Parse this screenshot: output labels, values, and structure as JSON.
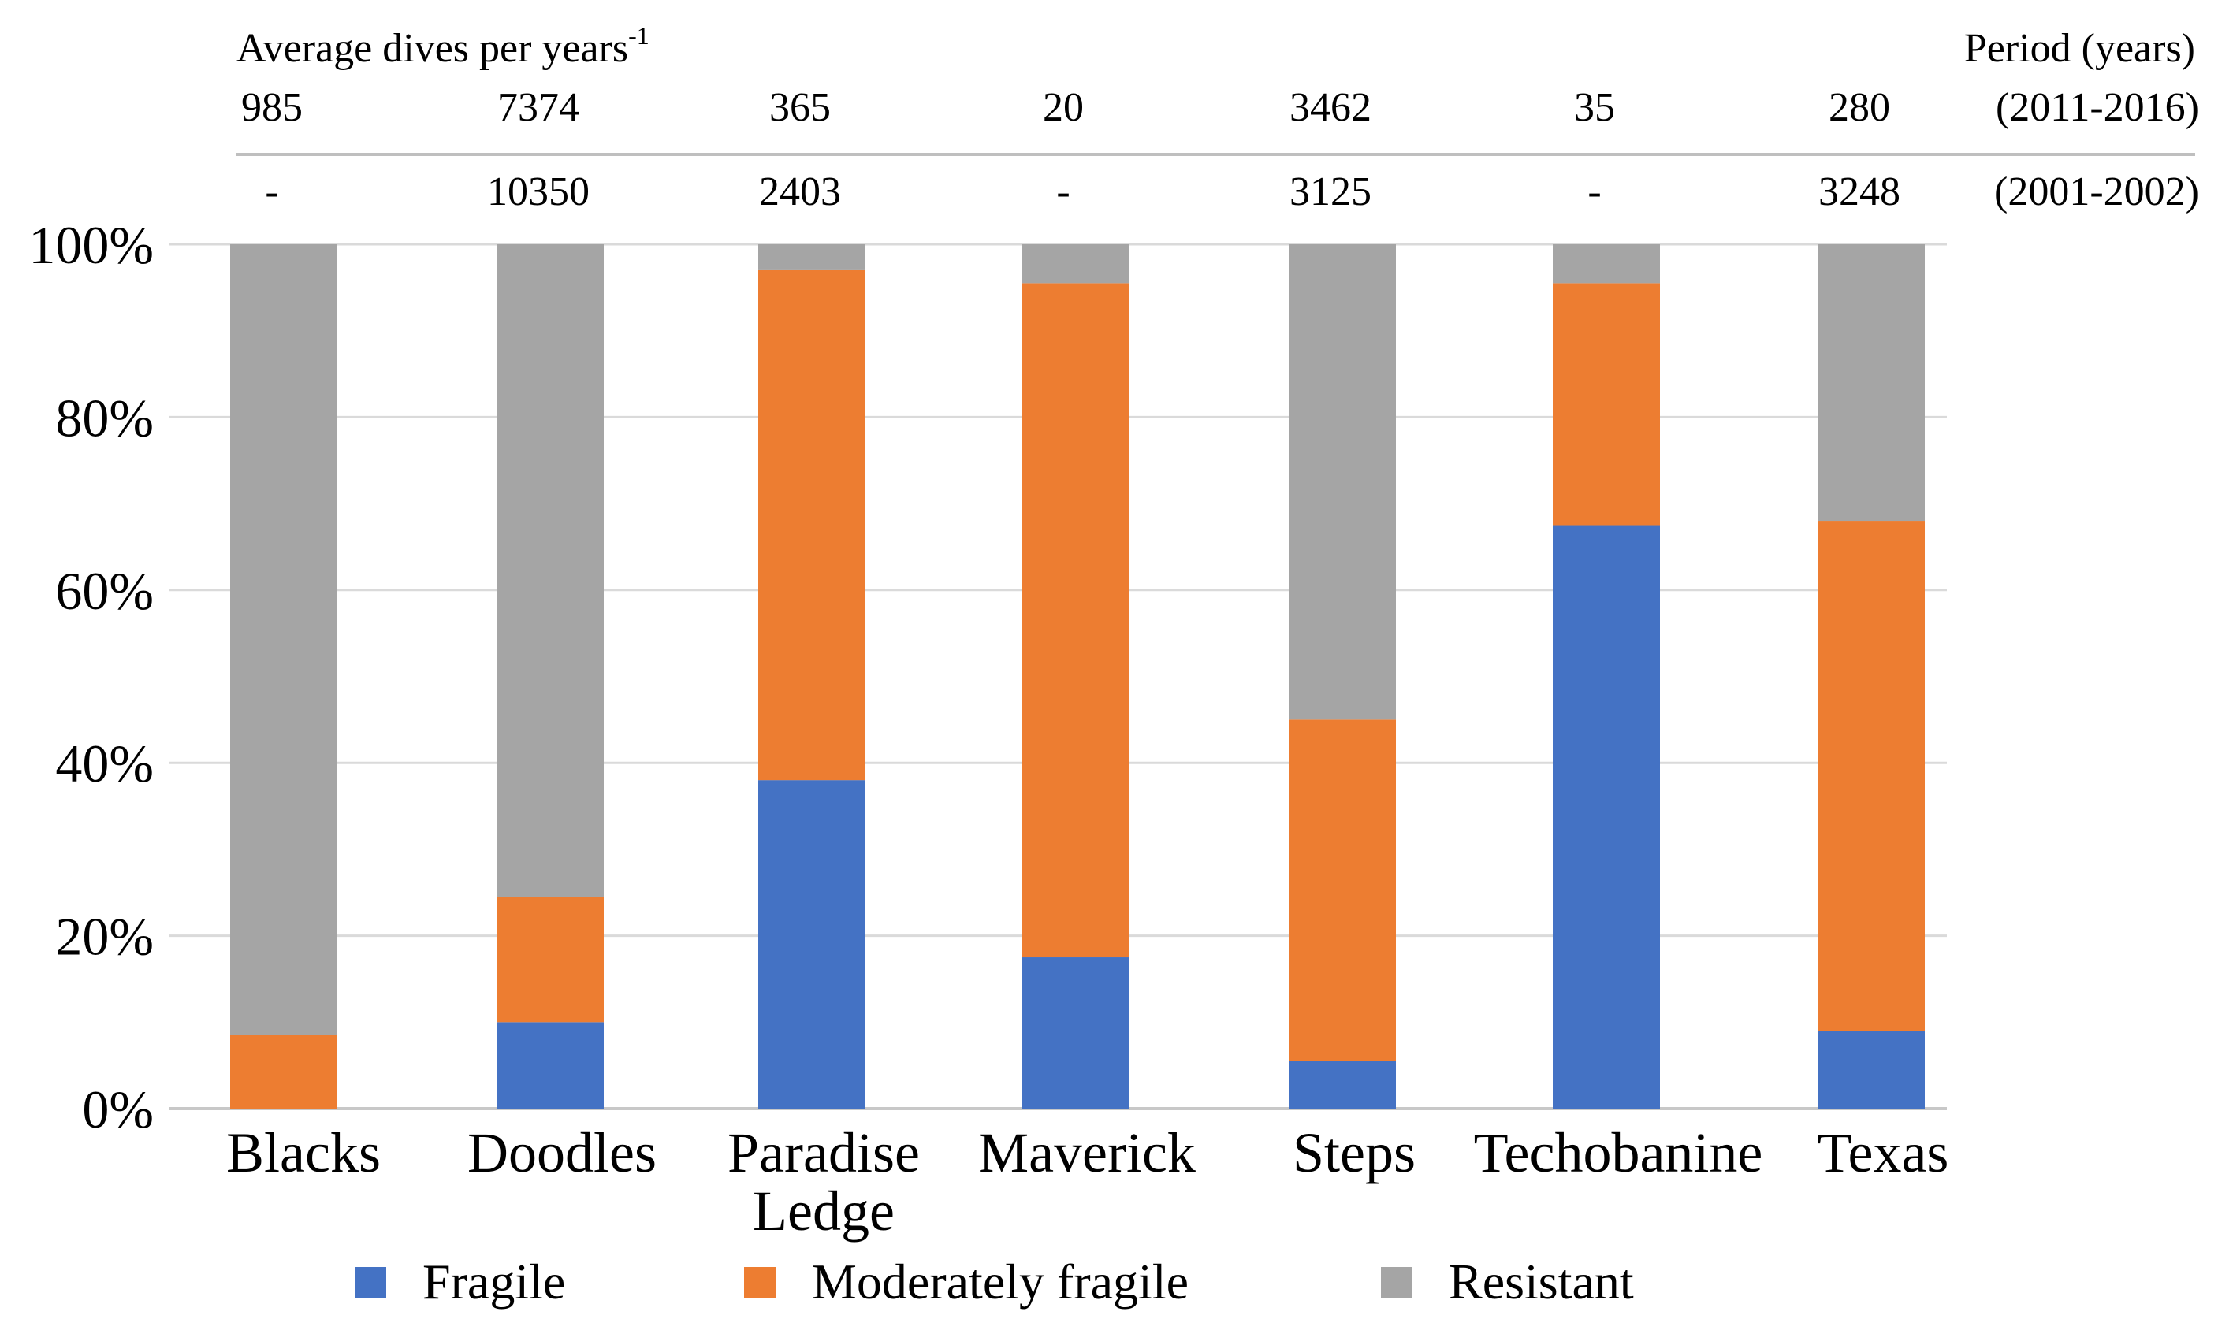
{
  "chart_data": {
    "type": "bar",
    "stacked": true,
    "percent": true,
    "categories": [
      [
        "Blacks"
      ],
      [
        "Doodles"
      ],
      [
        "Paradise",
        "Ledge"
      ],
      [
        "Maverick"
      ],
      [
        "Steps"
      ],
      [
        "Techobanine"
      ],
      [
        "Texas"
      ]
    ],
    "series": [
      {
        "name": "Fragile",
        "color": "#4472C4",
        "values": [
          0,
          10,
          38,
          17.5,
          5.5,
          67.5,
          9
        ]
      },
      {
        "name": "Moderately fragile",
        "color": "#ED7D31",
        "values": [
          8.5,
          14.5,
          59,
          78,
          39.5,
          28,
          59
        ]
      },
      {
        "name": "Resistant",
        "color": "#A5A5A5",
        "values": [
          91.5,
          75.5,
          3,
          4.5,
          55,
          4.5,
          32
        ]
      }
    ],
    "ylim": [
      0,
      100
    ],
    "yticks": [
      0,
      20,
      40,
      60,
      80,
      100
    ],
    "ytick_labels": [
      "0%",
      "20%",
      "40%",
      "60%",
      "80%",
      "100%"
    ],
    "legend_position": "bottom",
    "grid": true,
    "header": {
      "label_base": "Average dives per years",
      "label_sup": "-1",
      "period_title": "Period (years)",
      "rows": [
        {
          "period": "(2011-2016)",
          "values": [
            "985",
            "7374",
            "365",
            "20",
            "3462",
            "35",
            "280"
          ]
        },
        {
          "period": "(2001-2002)",
          "values": [
            "-",
            "10350",
            "2403",
            "-",
            "3125",
            "-",
            "3248"
          ]
        }
      ]
    }
  }
}
